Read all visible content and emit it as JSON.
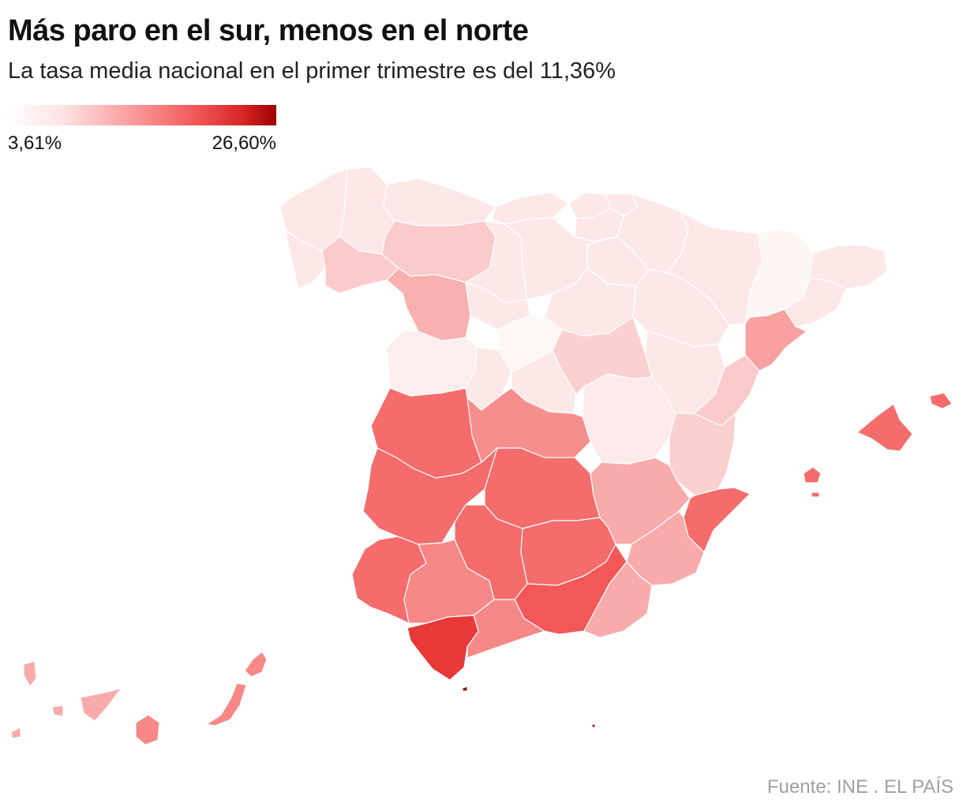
{
  "title": "Más paro en el sur, menos en el norte",
  "subtitle": "La tasa media nacional en el primer trimestre es del 11,36%",
  "legend": {
    "min_label": "3,61%",
    "max_label": "26,60%",
    "min_value": 3.61,
    "max_value": 26.6,
    "colors": [
      "#ffffff",
      "#fcd6d6",
      "#f9a3a3",
      "#f46060",
      "#e83030",
      "#a50000"
    ]
  },
  "source": "Fuente: INE . EL PAÍS",
  "map_data": {
    "type": "choropleth",
    "regions": "Provincias de España"
  }
}
